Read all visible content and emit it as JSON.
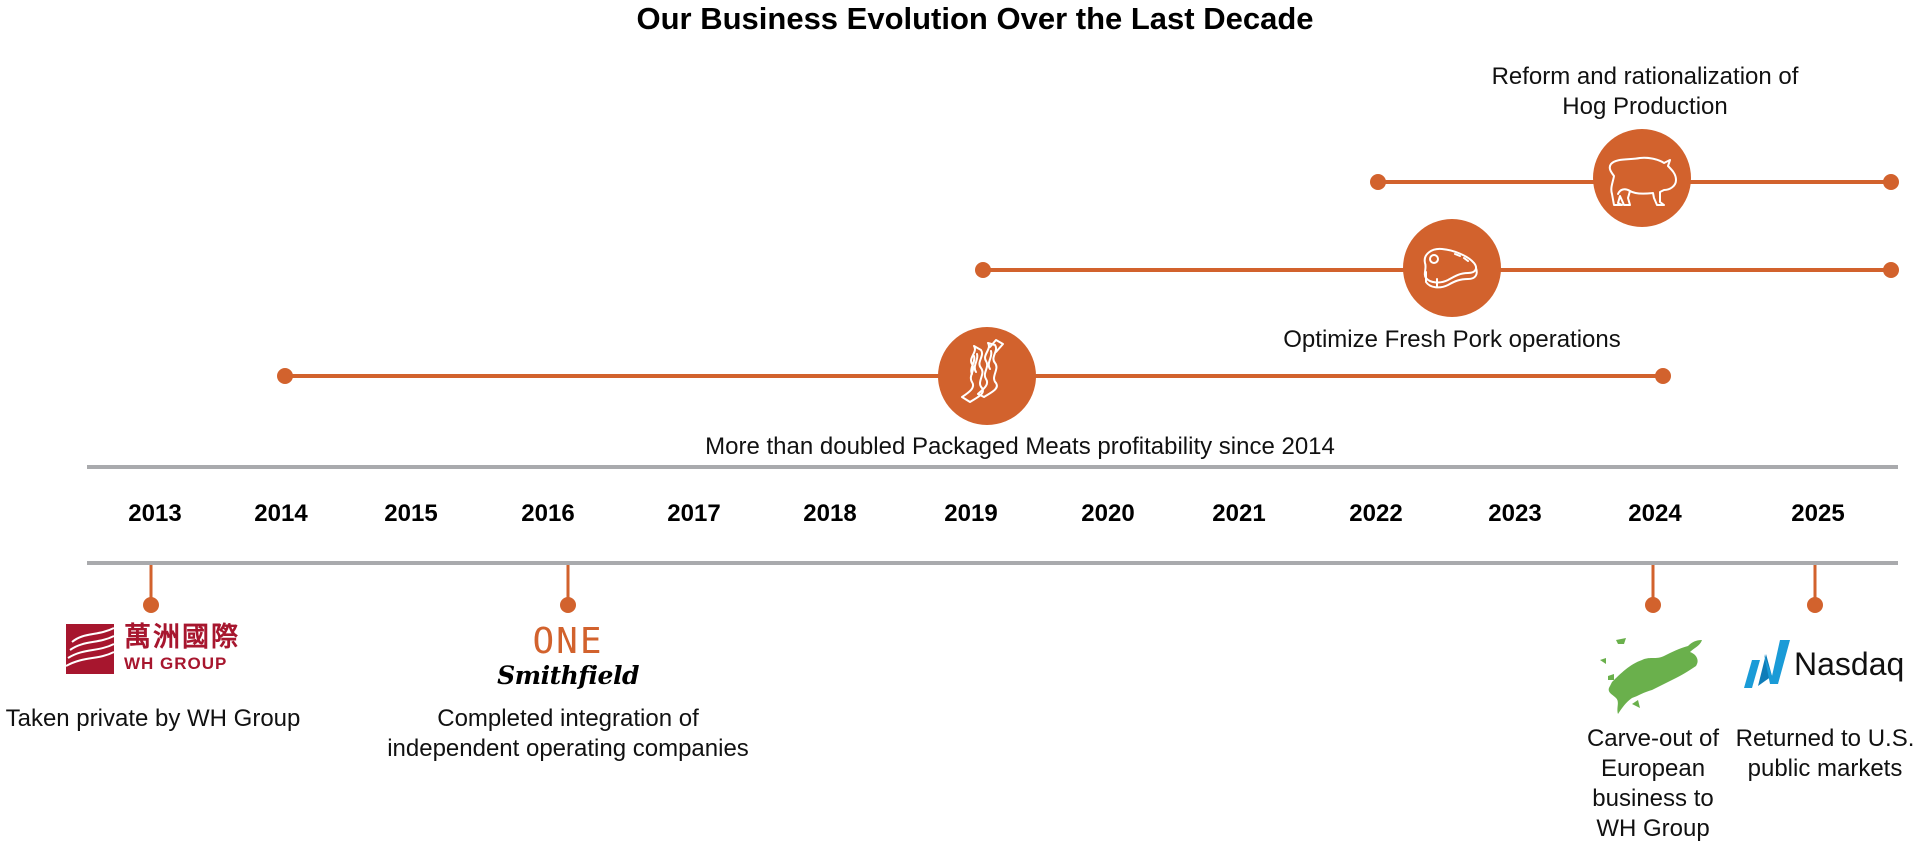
{
  "title": "Our Business Evolution Over the Last Decade",
  "colors": {
    "accent": "#D2622D",
    "axis": "#A9AAAD",
    "wh_group_red": "#A7162E",
    "europe_green": "#6AB04C",
    "nasdaq_blue": "#1A9BD7"
  },
  "initiatives": [
    {
      "id": "packaged-meats",
      "label": "More than doubled Packaged Meats profitability since 2014",
      "start_year": 2014,
      "end_year": 2024,
      "icon": "bacon-icon"
    },
    {
      "id": "fresh-pork",
      "label": "Optimize Fresh Pork operations",
      "start_year": 2019,
      "end_year": 2025,
      "icon": "steak-icon"
    },
    {
      "id": "hog-production",
      "label_line1": "Reform and rationalization of",
      "label_line2": "Hog Production",
      "start_year": 2022,
      "end_year": 2025,
      "icon": "pig-icon"
    }
  ],
  "years": [
    "2013",
    "2014",
    "2015",
    "2016",
    "2017",
    "2018",
    "2019",
    "2020",
    "2021",
    "2022",
    "2023",
    "2024",
    "2025"
  ],
  "milestones": [
    {
      "year": "2013",
      "logo": "wh-group-logo",
      "logo_text_cn": "萬洲國際",
      "logo_text_en": "WH GROUP",
      "caption": "Taken private by WH Group"
    },
    {
      "year": "2016",
      "logo": "one-smithfield-logo",
      "logo_text_top": "ONE",
      "logo_text_bottom": "Smithfield",
      "caption_line1": "Completed integration of",
      "caption_line2": "independent operating companies"
    },
    {
      "year": "2024",
      "logo": "europe-map-icon",
      "caption_line1": "Carve-out of",
      "caption_line2": "European",
      "caption_line3": "business to",
      "caption_line4": "WH Group"
    },
    {
      "year": "2025",
      "logo": "nasdaq-logo",
      "logo_text": "Nasdaq",
      "caption_line1": "Returned to U.S.",
      "caption_line2": "public markets"
    }
  ]
}
